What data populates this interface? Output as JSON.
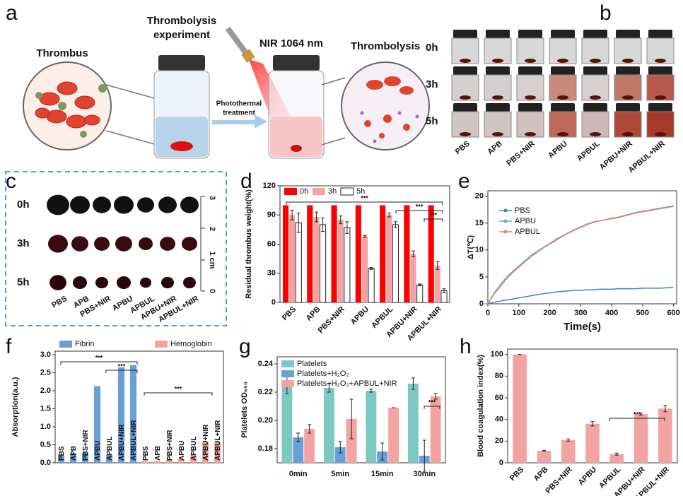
{
  "panel_labels": [
    "a",
    "b",
    "c",
    "d",
    "e",
    "f",
    "g",
    "h"
  ],
  "panel_a": {
    "thrombus": "Thrombus",
    "experiment_title": [
      "Thrombolysis",
      "experiment"
    ],
    "laser": "NIR 1064 nm",
    "treatment": [
      "Photothermal",
      "treatment"
    ],
    "result": "Thrombolysis"
  },
  "panel_b": {
    "rows": [
      "0h",
      "3h",
      "5h"
    ],
    "columns": [
      "PBS",
      "APB",
      "PBS+NIR",
      "APBU",
      "APBUL",
      "APBU+NIR",
      "APBUL+NIR"
    ]
  },
  "panel_c": {
    "rows": [
      "0h",
      "3h",
      "5h"
    ],
    "columns": [
      "PBS",
      "APB",
      "PBS+NIR",
      "APBU",
      "APBUL",
      "APBU+NIR",
      "APBUL+NIR"
    ],
    "ruler": [
      "3",
      "2",
      "1 cm",
      "0"
    ]
  },
  "chart_data": [
    {
      "type": "bar",
      "ylabel": "Residual thrombus weight(%)",
      "categories": [
        "PBS",
        "APB",
        "PBS+NIR",
        "APBU",
        "APBUL",
        "APBU+NIR",
        "APBUL+NIR"
      ],
      "series": [
        {
          "name": "0h",
          "color": "#ff0000",
          "values": [
            100,
            100,
            100,
            100,
            100,
            100,
            100
          ]
        },
        {
          "name": "3h",
          "color": "#f4a3a3",
          "values": [
            90,
            88,
            85,
            68,
            90,
            50,
            38
          ],
          "errors": [
            5,
            5,
            4,
            1,
            2,
            3,
            4
          ]
        },
        {
          "name": "5h",
          "color": "#ffffff",
          "values": [
            82,
            80,
            77,
            35,
            80,
            18,
            12
          ],
          "errors": [
            10,
            7,
            6,
            1,
            3,
            1,
            2
          ]
        }
      ],
      "ylim": [
        0,
        120
      ],
      "yticks": [
        0,
        30,
        60,
        90,
        120
      ],
      "annotations": [
        "***",
        "***",
        "***"
      ]
    },
    {
      "type": "line",
      "xlabel": "Time(s)",
      "ylabel": "ΔT(℃)",
      "x": [
        0,
        20,
        40,
        60,
        80,
        100,
        120,
        140,
        160,
        180,
        200,
        220,
        240,
        260,
        280,
        300,
        320,
        340,
        360,
        380,
        400,
        420,
        440,
        460,
        480,
        500,
        520,
        540,
        560,
        580,
        600
      ],
      "series": [
        {
          "name": "PBS",
          "color": "#3f7fcf",
          "values": [
            0,
            0.3,
            0.5,
            0.7,
            0.9,
            1.1,
            1.3,
            1.5,
            1.7,
            1.9,
            2,
            2.2,
            2.3,
            2.4,
            2.5,
            2.5,
            2.6,
            2.6,
            2.7,
            2.7,
            2.7,
            2.8,
            2.8,
            2.8,
            2.8,
            2.9,
            2.9,
            2.9,
            2.9,
            3,
            3
          ]
        },
        {
          "name": "APBU",
          "color": "#5fb8b0",
          "values": [
            0,
            2,
            3.5,
            5,
            6,
            7,
            8,
            9,
            9.8,
            10.5,
            11.2,
            12,
            12.6,
            13.2,
            13.8,
            14.3,
            14.8,
            15.2,
            15.4,
            15.6,
            15.8,
            16,
            16.3,
            16.6,
            16.9,
            17.1,
            17.3,
            17.5,
            17.7,
            17.9,
            18.1
          ]
        },
        {
          "name": "APBUL",
          "color": "#f07878",
          "values": [
            0,
            1.8,
            3.2,
            4.6,
            5.8,
            6.8,
            7.8,
            8.8,
            9.6,
            10.4,
            11.1,
            11.8,
            12.5,
            13.1,
            13.7,
            14.2,
            14.7,
            15.1,
            15.4,
            15.6,
            15.9,
            16.1,
            16.4,
            16.7,
            17,
            17.2,
            17.4,
            17.6,
            17.8,
            18,
            18.2
          ]
        }
      ],
      "xlim": [
        0,
        610
      ],
      "xticks": [
        0,
        100,
        200,
        300,
        400,
        500,
        600
      ],
      "ylim": [
        0,
        21
      ],
      "yticks": [
        0,
        5,
        10,
        15,
        20
      ]
    },
    {
      "type": "bar",
      "ylabel": "Absorption(a.u.)",
      "categories": [
        "PBS",
        "APB",
        "PBS+NIR",
        "APBU",
        "APBUL",
        "APBU+NIR",
        "APBUL+NIR",
        "PBS",
        "APB",
        "PBS+NIR",
        "APBU",
        "APBUL",
        "APBU+NIR",
        "APBUL+NIR"
      ],
      "series": [
        {
          "name": "Fibrin",
          "color": "#6a9fd4",
          "values": [
            0.22,
            0.27,
            0.28,
            2.13,
            0.22,
            2.65,
            2.72,
            null,
            null,
            null,
            null,
            null,
            null,
            null
          ]
        },
        {
          "name": "Hemoglobin",
          "color": "#f4a3a3",
          "values": [
            null,
            null,
            null,
            null,
            null,
            null,
            null,
            0.05,
            0.05,
            0.08,
            0.1,
            0.22,
            0.57,
            0.58
          ]
        }
      ],
      "ylim": [
        0,
        3.1
      ],
      "yticks": [
        {
          "value": 0,
          "label": "0.0"
        },
        0.5,
        {
          "value": 1,
          "label": "1.0"
        },
        1.5,
        {
          "value": 2,
          "label": "2.0"
        },
        2.5,
        {
          "value": 3,
          "label": "3.0"
        }
      ],
      "annotations": [
        "***",
        "***",
        "***"
      ]
    },
    {
      "type": "bar",
      "ylabel": "Platelets OD₆₅₀",
      "categories": [
        "0min",
        "5min",
        "15min",
        "30min"
      ],
      "series": [
        {
          "name": "Platelets",
          "color": "#7dc9c0",
          "values": [
            0.225,
            0.223,
            0.221,
            0.226
          ],
          "errors": [
            0.006,
            0.003,
            0.001,
            0.004
          ]
        },
        {
          "name": "Platelets+H₂O₂",
          "color": "#6a9fd4",
          "values": [
            0.188,
            0.181,
            0.178,
            0.175
          ],
          "errors": [
            0.003,
            0.004,
            0.006,
            0.011
          ]
        },
        {
          "name": "Platelets+H₂O₂+APBUL+NIR",
          "color": "#f4a3a3",
          "values": [
            0.194,
            0.201,
            0.209,
            0.217
          ],
          "errors": [
            0.003,
            0.014,
            0,
            0.002
          ]
        }
      ],
      "ylim": [
        0.17,
        0.245
      ],
      "yticks": [
        0.18,
        {
          "value": 0.2,
          "label": "0.20"
        },
        0.22,
        0.24
      ],
      "annotations": [
        "***"
      ]
    },
    {
      "type": "bar",
      "ylabel": "Blood coagulation index(%)",
      "categories": [
        "PBS",
        "APB",
        "PBS+NIR",
        "APBU",
        "APBUL",
        "APBU+NIR",
        "APBUL+NIR"
      ],
      "series": [
        {
          "color": "#f4a3a3",
          "values": [
            100,
            11,
            21,
            36,
            8,
            45,
            50
          ],
          "errors": [
            0,
            0.5,
            1,
            2,
            1,
            1,
            3
          ]
        }
      ],
      "ylim": [
        0,
        105
      ],
      "yticks": [
        0,
        20,
        40,
        60,
        80,
        100
      ],
      "annotations": [
        "***"
      ]
    }
  ]
}
